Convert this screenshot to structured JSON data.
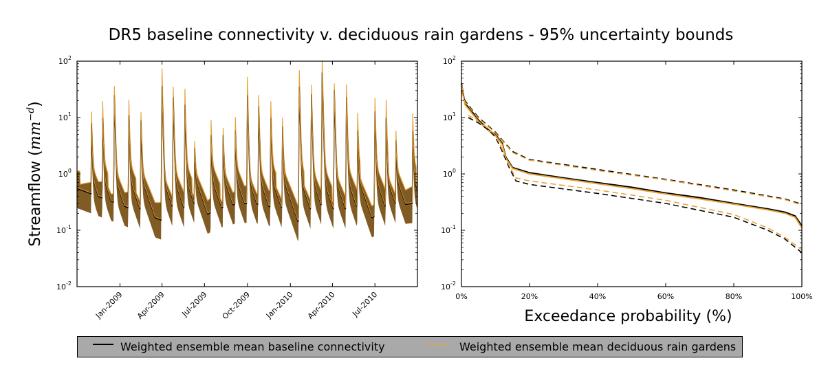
{
  "title": "DR5 baseline connectivity v. deciduous rain gardens - 95% uncertainty bounds",
  "colors": {
    "baseline": "#000000",
    "rain_gardens": "#e8a33a",
    "band": "#7a5218"
  },
  "chart_data": [
    {
      "type": "area",
      "panel": "left",
      "title": "",
      "xlabel": "",
      "ylabel": "Streamflow (mm^-d)",
      "ylabel_plain": "Streamflow (",
      "ylabel_math": "mm",
      "ylabel_exp": "−d",
      "ylabel_close": ")",
      "yscale": "log",
      "ylim": [
        0.01,
        100
      ],
      "xlim": [
        "2008-10-01",
        "2010-09-30"
      ],
      "y_tick_values": [
        0.01,
        0.1,
        1,
        10,
        100
      ],
      "y_ticks": [
        {
          "base": "10",
          "exp": "-2"
        },
        {
          "base": "10",
          "exp": "-1"
        },
        {
          "base": "10",
          "exp": "0"
        },
        {
          "base": "10",
          "exp": "1"
        },
        {
          "base": "10",
          "exp": "2"
        }
      ],
      "x_ticks": [
        "Jan-2009",
        "Apr-2009",
        "Jul-2009",
        "Oct-2009",
        "Jan-2010",
        "Apr-2010",
        "Jul-2010"
      ],
      "x_tick_dates": [
        "2009-01-01",
        "2009-04-01",
        "2009-07-01",
        "2009-10-01",
        "2010-01-01",
        "2010-04-01",
        "2010-07-01"
      ],
      "series": [
        {
          "name": "Weighted ensemble mean baseline connectivity",
          "peaks": [
            {
              "x": "2008-11-01",
              "y": 7
            },
            {
              "x": "2008-11-25",
              "y": 9
            },
            {
              "x": "2008-12-20",
              "y": 24
            },
            {
              "x": "2009-01-20",
              "y": 10
            },
            {
              "x": "2009-02-15",
              "y": 8
            },
            {
              "x": "2009-04-01",
              "y": 35
            },
            {
              "x": "2009-04-25",
              "y": 22
            },
            {
              "x": "2009-05-20",
              "y": 16
            },
            {
              "x": "2009-06-10",
              "y": 2
            },
            {
              "x": "2009-07-15",
              "y": 4
            },
            {
              "x": "2009-08-10",
              "y": 4
            },
            {
              "x": "2009-09-05",
              "y": 5
            },
            {
              "x": "2009-10-01",
              "y": 24
            },
            {
              "x": "2009-10-25",
              "y": 15
            },
            {
              "x": "2009-11-20",
              "y": 9
            },
            {
              "x": "2009-12-15",
              "y": 6
            },
            {
              "x": "2010-01-20",
              "y": 34
            },
            {
              "x": "2010-02-15",
              "y": 25
            },
            {
              "x": "2010-03-10",
              "y": 62
            },
            {
              "x": "2010-04-05",
              "y": 30
            },
            {
              "x": "2010-05-01",
              "y": 22
            },
            {
              "x": "2010-05-25",
              "y": 5
            },
            {
              "x": "2010-07-01",
              "y": 12
            },
            {
              "x": "2010-07-25",
              "y": 9
            },
            {
              "x": "2010-08-15",
              "y": 3
            },
            {
              "x": "2010-09-20",
              "y": 5
            }
          ]
        },
        {
          "name": "Weighted ensemble mean deciduous rain gardens"
        }
      ]
    },
    {
      "type": "line",
      "panel": "right",
      "title": "",
      "xlabel": "Exceedance probability (%)",
      "ylabel": "",
      "yscale": "log",
      "ylim": [
        0.01,
        100
      ],
      "xlim": [
        0,
        100
      ],
      "y_tick_values": [
        0.01,
        0.1,
        1,
        10,
        100
      ],
      "y_ticks": [
        {
          "base": "10",
          "exp": "-2"
        },
        {
          "base": "10",
          "exp": "-1"
        },
        {
          "base": "10",
          "exp": "0"
        },
        {
          "base": "10",
          "exp": "1"
        },
        {
          "base": "10",
          "exp": "2"
        }
      ],
      "x_tick_values": [
        0,
        20,
        40,
        60,
        80,
        100
      ],
      "x_ticks": [
        "0%",
        "20%",
        "40%",
        "60%",
        "80%",
        "100%"
      ],
      "series": [
        {
          "name": "Weighted ensemble mean baseline connectivity",
          "style": "solid",
          "x": [
            0,
            1,
            3,
            5,
            8,
            10,
            12,
            13,
            15,
            20,
            30,
            40,
            50,
            60,
            70,
            80,
            90,
            95,
            98,
            100
          ],
          "y": [
            40,
            18,
            13,
            9,
            6,
            5,
            3.5,
            2.0,
            1.3,
            1.05,
            0.85,
            0.7,
            0.58,
            0.46,
            0.38,
            0.3,
            0.24,
            0.21,
            0.18,
            0.12
          ]
        },
        {
          "name": "Weighted ensemble mean deciduous rain gardens",
          "style": "solid",
          "x": [
            0,
            1,
            3,
            5,
            8,
            10,
            12,
            13,
            15,
            20,
            30,
            40,
            50,
            60,
            70,
            80,
            90,
            95,
            98,
            100
          ],
          "y": [
            38,
            17,
            12,
            8.5,
            5.8,
            4.8,
            3.3,
            1.9,
            1.25,
            1.0,
            0.82,
            0.67,
            0.55,
            0.44,
            0.36,
            0.29,
            0.23,
            0.2,
            0.17,
            0.11
          ]
        },
        {
          "name": "Baseline upper bound",
          "style": "dashed",
          "x": [
            0,
            1,
            3,
            5,
            8,
            10,
            12,
            15,
            20,
            40,
            60,
            80,
            95,
            100
          ],
          "y": [
            30,
            20,
            14,
            10,
            7,
            5.5,
            4.0,
            2.5,
            1.8,
            1.2,
            0.8,
            0.52,
            0.36,
            0.29
          ]
        },
        {
          "name": "Rain gardens upper bound",
          "style": "dashed",
          "x": [
            0,
            1,
            3,
            5,
            8,
            10,
            12,
            15,
            20,
            40,
            60,
            80,
            95,
            100
          ],
          "y": [
            29,
            19,
            13.5,
            9.6,
            6.8,
            5.3,
            3.9,
            2.4,
            1.75,
            1.15,
            0.78,
            0.5,
            0.35,
            0.28
          ]
        },
        {
          "name": "Baseline lower bound",
          "style": "dashed",
          "x": [
            2,
            5,
            8,
            10,
            12,
            14,
            16,
            20,
            40,
            60,
            80,
            90,
            95,
            100
          ],
          "y": [
            10,
            8,
            6,
            4.5,
            2.5,
            1.3,
            0.75,
            0.65,
            0.45,
            0.3,
            0.17,
            0.1,
            0.07,
            0.04
          ]
        },
        {
          "name": "Rain gardens lower bound",
          "style": "dashed",
          "x": [
            2,
            5,
            8,
            10,
            12,
            14,
            16,
            20,
            40,
            60,
            80,
            90,
            95,
            100
          ],
          "y": [
            11,
            8.5,
            6.3,
            4.8,
            2.7,
            1.4,
            0.85,
            0.75,
            0.52,
            0.34,
            0.19,
            0.11,
            0.075,
            0.045
          ]
        }
      ]
    }
  ],
  "legend": {
    "placement": "bottom",
    "entries": [
      {
        "label": "Weighted ensemble mean baseline connectivity",
        "color": "#000000"
      },
      {
        "label": "Weighted ensemble mean deciduous rain gardens",
        "color": "#e8a33a"
      }
    ]
  }
}
